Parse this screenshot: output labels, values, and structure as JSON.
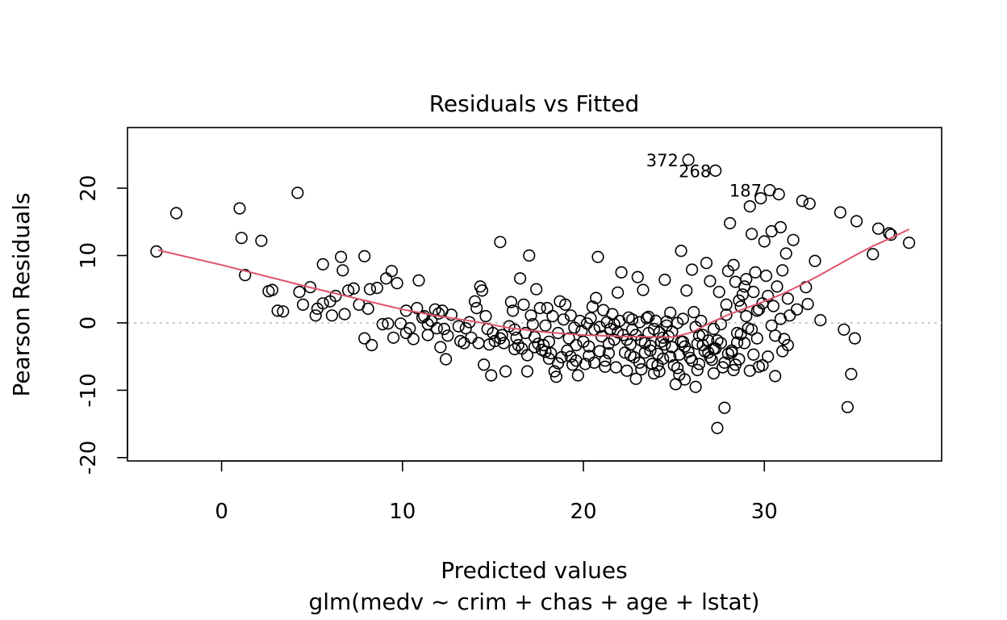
{
  "chart_data": {
    "type": "scatter",
    "title": "Residuals vs Fitted",
    "xlabel": "Predicted values",
    "subtitle": "glm(medv ~ crim + chas + age + lstat)",
    "ylabel": "Pearson Residuals",
    "xlim": [
      -5.2,
      39.8
    ],
    "ylim": [
      -20.5,
      29.0
    ],
    "x_ticks": [
      0,
      10,
      20,
      30
    ],
    "y_ticks": [
      -20,
      -10,
      0,
      10,
      20
    ],
    "reference_line": 0,
    "outlier_labels": [
      {
        "label": "372",
        "x": 25.7,
        "y": 24.2
      },
      {
        "label": "268",
        "x": 27.5,
        "y": 22.6
      },
      {
        "label": "187",
        "x": 30.3,
        "y": 19.7
      }
    ],
    "smooth": {
      "x": [
        -3.5,
        0,
        5,
        10,
        12,
        14,
        16,
        18,
        20,
        22,
        24,
        25,
        26,
        27,
        28,
        29,
        30,
        31,
        32,
        33,
        34,
        35,
        36,
        37,
        38
      ],
      "y": [
        10.8,
        8.6,
        5.2,
        2.0,
        1.0,
        0.2,
        -0.8,
        -1.4,
        -1.8,
        -2.0,
        -2.1,
        -2.1,
        -1.4,
        0.0,
        1.2,
        2.2,
        3.2,
        4.3,
        5.6,
        7.0,
        8.5,
        10.0,
        11.4,
        12.6,
        13.9
      ]
    },
    "points": [
      [
        -3.6,
        10.6
      ],
      [
        -2.5,
        16.3
      ],
      [
        1.0,
        17.0
      ],
      [
        1.1,
        12.6
      ],
      [
        1.3,
        7.1
      ],
      [
        2.2,
        12.2
      ],
      [
        2.6,
        4.7
      ],
      [
        3.1,
        1.8
      ],
      [
        4.2,
        19.3
      ],
      [
        4.3,
        4.6
      ],
      [
        4.5,
        2.7
      ],
      [
        4.9,
        5.3
      ],
      [
        5.2,
        1.1
      ],
      [
        5.6,
        8.7
      ],
      [
        5.6,
        2.9
      ],
      [
        6.1,
        1.1
      ],
      [
        6.3,
        4.0
      ],
      [
        6.6,
        9.8
      ],
      [
        6.7,
        7.8
      ],
      [
        6.8,
        1.3
      ],
      [
        7.0,
        4.8
      ],
      [
        7.6,
        2.7
      ],
      [
        7.9,
        9.9
      ],
      [
        7.9,
        -2.3
      ],
      [
        8.2,
        5.0
      ],
      [
        8.3,
        -3.3
      ],
      [
        8.6,
        5.2
      ],
      [
        8.9,
        -0.2
      ],
      [
        9.1,
        6.6
      ],
      [
        9.4,
        7.7
      ],
      [
        9.5,
        -2.2
      ],
      [
        9.7,
        5.9
      ],
      [
        9.9,
        -0.1
      ],
      [
        10.2,
        1.8
      ],
      [
        10.2,
        -1.5
      ],
      [
        10.6,
        -2.4
      ],
      [
        10.8,
        2.2
      ],
      [
        10.9,
        6.3
      ],
      [
        11.2,
        1.0
      ],
      [
        11.4,
        -0.2
      ],
      [
        11.4,
        -1.8
      ],
      [
        11.6,
        0.3
      ],
      [
        11.8,
        2.0
      ],
      [
        11.9,
        -0.8
      ],
      [
        12.0,
        1.4
      ],
      [
        12.1,
        -3.6
      ],
      [
        12.2,
        1.8
      ],
      [
        12.3,
        -0.9
      ],
      [
        12.4,
        -5.4
      ],
      [
        12.5,
        -1.9
      ],
      [
        13.2,
        -2.7
      ],
      [
        13.4,
        -3.0
      ],
      [
        13.5,
        -0.8
      ],
      [
        13.8,
        -2.2
      ],
      [
        14.0,
        3.2
      ],
      [
        14.1,
        2.2
      ],
      [
        14.2,
        -3.0
      ],
      [
        14.3,
        5.4
      ],
      [
        14.4,
        4.8
      ],
      [
        14.5,
        -6.2
      ],
      [
        14.6,
        1.0
      ],
      [
        14.8,
        -3.2
      ],
      [
        14.9,
        -7.8
      ],
      [
        15.0,
        -1.5
      ],
      [
        15.1,
        -2.7
      ],
      [
        15.4,
        12.0
      ],
      [
        15.5,
        -1.8
      ],
      [
        15.6,
        -3.0
      ],
      [
        15.7,
        -7.2
      ],
      [
        15.9,
        -0.5
      ],
      [
        16.0,
        3.1
      ],
      [
        16.1,
        1.8
      ],
      [
        16.2,
        -1.0
      ],
      [
        16.3,
        -2.2
      ],
      [
        16.4,
        -3.3
      ],
      [
        16.5,
        6.6
      ],
      [
        16.6,
        -3.8
      ],
      [
        16.7,
        2.7
      ],
      [
        16.8,
        -1.5
      ],
      [
        16.9,
        -7.2
      ],
      [
        17.0,
        10.0
      ],
      [
        17.1,
        1.1
      ],
      [
        17.2,
        -0.2
      ],
      [
        17.3,
        -2.1
      ],
      [
        17.4,
        5.0
      ],
      [
        17.5,
        -3.1
      ],
      [
        17.6,
        2.2
      ],
      [
        17.7,
        -4.0
      ],
      [
        17.8,
        -3.3
      ],
      [
        17.9,
        -0.4
      ],
      [
        18.0,
        2.2
      ],
      [
        18.1,
        -2.8
      ],
      [
        18.2,
        -4.5
      ],
      [
        18.3,
        1.0
      ],
      [
        18.4,
        -7.2
      ],
      [
        18.5,
        -8.0
      ],
      [
        18.6,
        -1.5
      ],
      [
        18.7,
        3.2
      ],
      [
        18.8,
        -5.1
      ],
      [
        18.9,
        0.5
      ],
      [
        19.0,
        2.7
      ],
      [
        19.1,
        -4.1
      ],
      [
        19.2,
        -2.3
      ],
      [
        19.3,
        1.1
      ],
      [
        19.4,
        -6.2
      ],
      [
        19.5,
        -0.7
      ],
      [
        19.6,
        -3.3
      ],
      [
        19.7,
        -7.8
      ],
      [
        19.8,
        0.3
      ],
      [
        19.9,
        -1.2
      ],
      [
        20.0,
        -2.8
      ],
      [
        20.1,
        -6.1
      ],
      [
        20.2,
        -0.1
      ],
      [
        20.3,
        -3.5
      ],
      [
        20.4,
        0.7
      ],
      [
        20.5,
        2.4
      ],
      [
        20.6,
        -1.0
      ],
      [
        20.7,
        3.7
      ],
      [
        20.8,
        9.8
      ],
      [
        20.9,
        -4.2
      ],
      [
        21.0,
        -2.0
      ],
      [
        21.1,
        1.9
      ],
      [
        21.2,
        -5.6
      ],
      [
        21.3,
        0.1
      ],
      [
        21.4,
        -3.1
      ],
      [
        21.5,
        -0.9
      ],
      [
        21.6,
        1.3
      ],
      [
        21.7,
        -2.5
      ],
      [
        21.8,
        -6.6
      ],
      [
        21.9,
        4.5
      ],
      [
        22.0,
        0.3
      ],
      [
        22.1,
        7.5
      ],
      [
        22.2,
        -1.8
      ],
      [
        22.3,
        -4.4
      ],
      [
        22.4,
        -7.1
      ],
      [
        22.5,
        0.8
      ],
      [
        22.6,
        -3.2
      ],
      [
        22.7,
        -1.0
      ],
      [
        22.8,
        -5.1
      ],
      [
        22.9,
        -8.3
      ],
      [
        23.0,
        6.8
      ],
      [
        23.1,
        0.1
      ],
      [
        23.2,
        -2.6
      ],
      [
        23.3,
        4.9
      ],
      [
        23.4,
        -4.4
      ],
      [
        23.5,
        0.7
      ],
      [
        23.6,
        -1.5
      ],
      [
        23.7,
        -3.4
      ],
      [
        23.8,
        -6.1
      ],
      [
        23.9,
        -7.5
      ],
      [
        24.0,
        0.3
      ],
      [
        24.1,
        -4.6
      ],
      [
        24.2,
        -1.4
      ],
      [
        24.3,
        -2.8
      ],
      [
        24.4,
        -5.3
      ],
      [
        24.5,
        6.4
      ],
      [
        24.6,
        -0.4
      ],
      [
        24.7,
        -2.0
      ],
      [
        24.8,
        1.5
      ],
      [
        24.9,
        -3.6
      ],
      [
        25.0,
        -6.3
      ],
      [
        25.1,
        -9.1
      ],
      [
        25.2,
        0.0
      ],
      [
        25.3,
        -4.7
      ],
      [
        25.4,
        10.7
      ],
      [
        25.5,
        -2.8
      ],
      [
        25.6,
        -8.4
      ],
      [
        25.7,
        4.8
      ],
      [
        25.8,
        24.2
      ],
      [
        25.9,
        -5.2
      ],
      [
        26.0,
        7.9
      ],
      [
        26.1,
        1.6
      ],
      [
        26.2,
        -9.5
      ],
      [
        26.3,
        -3.1
      ],
      [
        26.4,
        -6.1
      ],
      [
        26.5,
        0.3
      ],
      [
        26.6,
        -1.8
      ],
      [
        26.7,
        -4.2
      ],
      [
        26.8,
        8.9
      ],
      [
        26.9,
        -2.6
      ],
      [
        27.0,
        6.2
      ],
      [
        27.1,
        -5.5
      ],
      [
        27.2,
        -3.8
      ],
      [
        27.3,
        22.6
      ],
      [
        27.4,
        -15.6
      ],
      [
        27.5,
        4.6
      ],
      [
        27.6,
        -0.2
      ],
      [
        27.7,
        -6.6
      ],
      [
        27.8,
        -12.6
      ],
      [
        27.9,
        1.2
      ],
      [
        28.0,
        7.7
      ],
      [
        28.1,
        14.8
      ],
      [
        28.2,
        -4.4
      ],
      [
        28.3,
        8.6
      ],
      [
        28.4,
        6.1
      ],
      [
        28.5,
        -1.5
      ],
      [
        28.6,
        -5.4
      ],
      [
        28.7,
        2.4
      ],
      [
        28.8,
        4.2
      ],
      [
        28.9,
        -3.0
      ],
      [
        29.0,
        6.5
      ],
      [
        29.1,
        -0.8
      ],
      [
        29.2,
        17.3
      ],
      [
        29.3,
        13.2
      ],
      [
        29.4,
        -4.7
      ],
      [
        29.5,
        7.5
      ],
      [
        29.6,
        -2.3
      ],
      [
        29.7,
        2.0
      ],
      [
        29.8,
        18.5
      ],
      [
        29.9,
        -6.3
      ],
      [
        30.0,
        12.1
      ],
      [
        30.1,
        7.0
      ],
      [
        30.2,
        -5.0
      ],
      [
        30.3,
        19.7
      ],
      [
        30.4,
        13.6
      ],
      [
        30.5,
        2.5
      ],
      [
        30.6,
        -1.9
      ],
      [
        30.7,
        5.4
      ],
      [
        30.8,
        19.1
      ],
      [
        30.9,
        14.2
      ],
      [
        31.0,
        7.8
      ],
      [
        31.1,
        -2.4
      ],
      [
        31.2,
        10.3
      ],
      [
        31.3,
        3.6
      ],
      [
        31.4,
        1.1
      ],
      [
        31.6,
        12.3
      ],
      [
        31.8,
        2.0
      ],
      [
        32.1,
        18.1
      ],
      [
        32.3,
        5.3
      ],
      [
        32.4,
        2.8
      ],
      [
        32.5,
        17.7
      ],
      [
        32.8,
        9.2
      ],
      [
        33.1,
        0.4
      ],
      [
        34.2,
        16.4
      ],
      [
        34.4,
        -1.0
      ],
      [
        34.6,
        -12.5
      ],
      [
        34.8,
        -7.6
      ],
      [
        35.0,
        -2.3
      ],
      [
        35.1,
        15.1
      ],
      [
        36.0,
        10.2
      ],
      [
        36.3,
        14.0
      ],
      [
        36.9,
        13.3
      ],
      [
        37.0,
        13.1
      ],
      [
        38.0,
        11.9
      ],
      [
        17.3,
        -3.6
      ],
      [
        17.9,
        -4.3
      ],
      [
        19.3,
        -5.0
      ],
      [
        20.3,
        -4.9
      ],
      [
        21.4,
        -4.5
      ],
      [
        22.6,
        -4.8
      ],
      [
        23.7,
        -4.1
      ],
      [
        24.8,
        -5.0
      ],
      [
        25.8,
        -4.3
      ],
      [
        26.9,
        -4.4
      ],
      [
        27.3,
        -3.8
      ],
      [
        28.0,
        -4.6
      ],
      [
        23.1,
        -5.9
      ],
      [
        24.1,
        -6.3
      ],
      [
        25.2,
        -6.7
      ],
      [
        26.0,
        -5.6
      ],
      [
        27.0,
        -5.1
      ],
      [
        27.8,
        -5.9
      ],
      [
        28.4,
        -6.2
      ],
      [
        24.5,
        -3.2
      ],
      [
        25.6,
        -3.5
      ],
      [
        26.6,
        -3.3
      ],
      [
        27.6,
        -3.0
      ],
      [
        28.2,
        -4.1
      ],
      [
        22.4,
        -2.5
      ],
      [
        23.4,
        -3.0
      ],
      [
        24.4,
        -2.2
      ],
      [
        25.4,
        -2.8
      ],
      [
        26.4,
        -1.9
      ],
      [
        27.4,
        -2.6
      ],
      [
        28.5,
        -2.9
      ],
      [
        21.9,
        -1.4
      ],
      [
        22.9,
        -1.8
      ],
      [
        23.9,
        -0.9
      ],
      [
        24.9,
        -1.3
      ],
      [
        26.2,
        -0.6
      ],
      [
        27.2,
        -0.9
      ],
      [
        28.7,
        -1.7
      ],
      [
        20.9,
        -0.6
      ],
      [
        21.7,
        -0.2
      ],
      [
        22.7,
        0.5
      ],
      [
        23.6,
        0.9
      ],
      [
        24.6,
        0.2
      ],
      [
        25.5,
        0.6
      ],
      [
        29.0,
        1.0
      ],
      [
        29.6,
        1.8
      ],
      [
        29.9,
        2.9
      ],
      [
        30.4,
        -0.4
      ],
      [
        30.9,
        0.6
      ],
      [
        31.3,
        -3.3
      ],
      [
        29.3,
        -1.0
      ],
      [
        29.4,
        4.6
      ],
      [
        28.9,
        5.4
      ],
      [
        28.6,
        3.3
      ],
      [
        27.9,
        2.7
      ],
      [
        30.2,
        4.0
      ],
      [
        30.6,
        -7.9
      ],
      [
        31.0,
        -4.2
      ],
      [
        29.7,
        -6.5
      ],
      [
        29.2,
        -7.1
      ],
      [
        28.3,
        -7.0
      ],
      [
        27.2,
        -7.5
      ],
      [
        26.3,
        -7.0
      ],
      [
        25.3,
        -7.7
      ],
      [
        24.2,
        -7.2
      ],
      [
        23.2,
        -6.9
      ],
      [
        21.2,
        -6.5
      ],
      [
        20.6,
        -5.9
      ],
      [
        19.6,
        -5.6
      ],
      [
        18.6,
        -6.0
      ],
      [
        18.1,
        -5.3
      ],
      [
        16.9,
        -4.8
      ],
      [
        16.2,
        -3.9
      ],
      [
        15.4,
        -2.3
      ],
      [
        14.7,
        -0.9
      ],
      [
        13.7,
        0.1
      ],
      [
        13.1,
        -0.5
      ],
      [
        12.7,
        1.2
      ],
      [
        11.1,
        0.8
      ],
      [
        10.4,
        -0.8
      ],
      [
        9.2,
        -0.1
      ],
      [
        8.1,
        2.1
      ],
      [
        7.3,
        5.1
      ],
      [
        6.0,
        3.2
      ],
      [
        5.3,
        2.1
      ],
      [
        3.4,
        1.7
      ],
      [
        2.8,
        4.9
      ]
    ]
  }
}
